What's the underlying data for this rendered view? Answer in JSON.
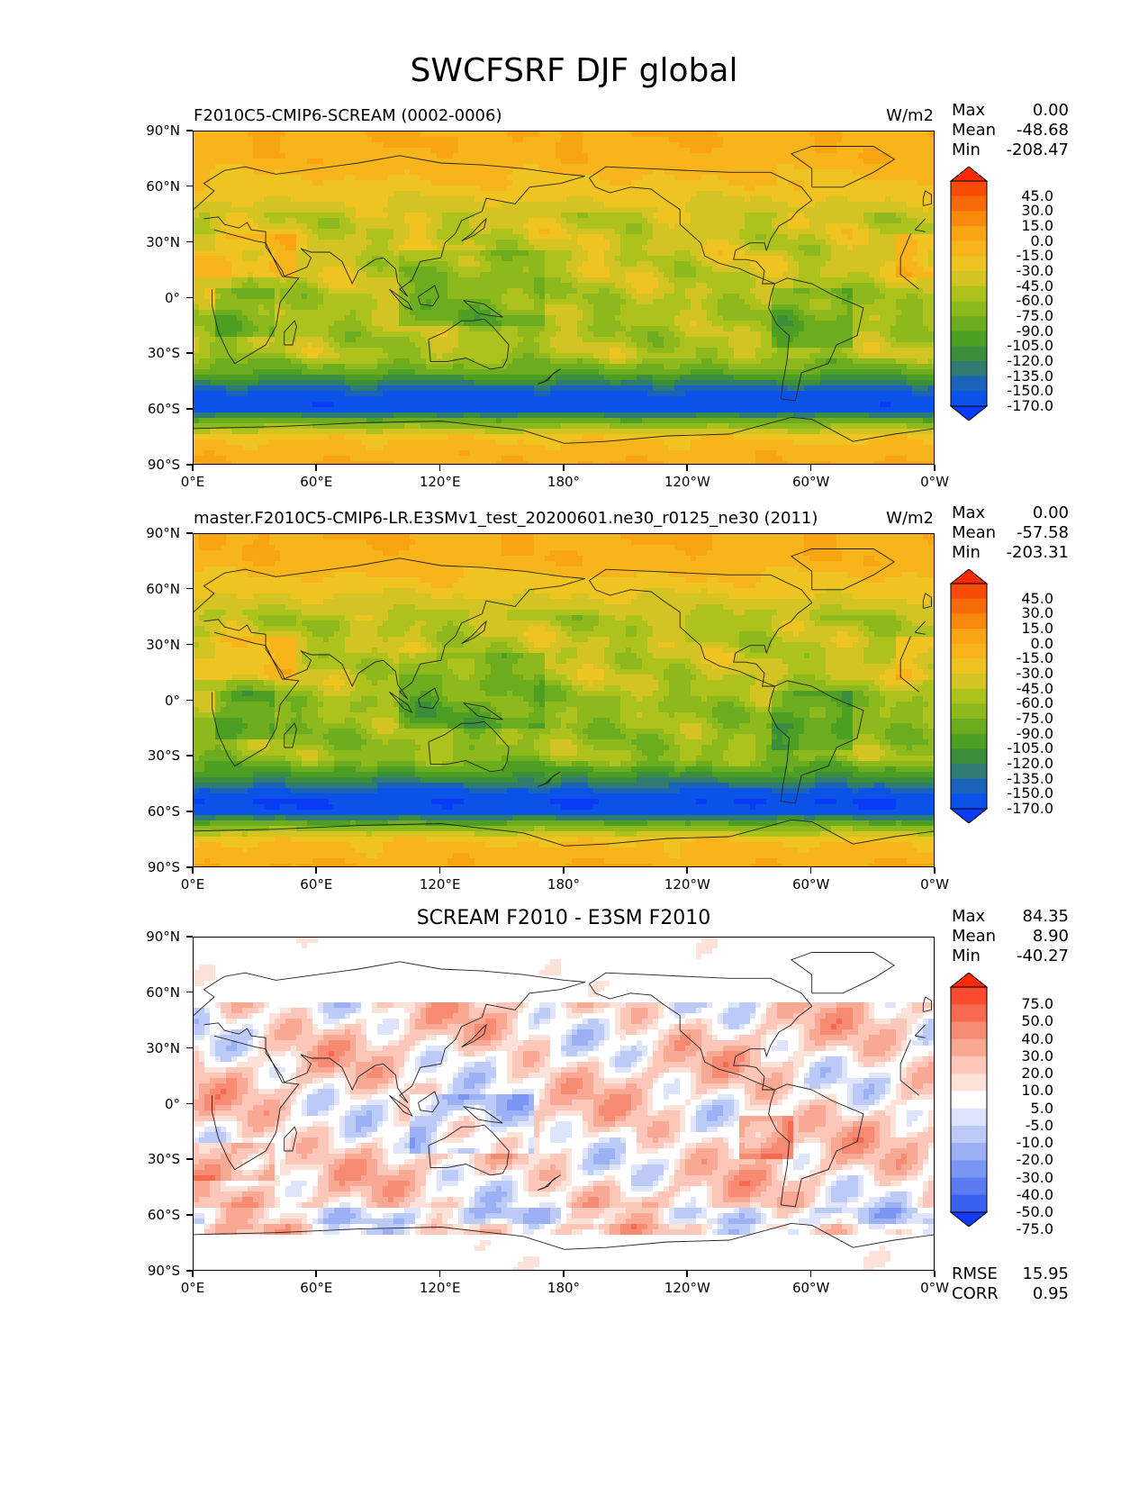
{
  "figure": {
    "title": "SWCFSRF DJF global"
  },
  "panels": [
    {
      "title_left": "F2010C5-CMIP6-SCREAM (0002-0006)",
      "title_center": "",
      "units": "W/m2",
      "stats": {
        "max_label": "Max",
        "max": "0.00",
        "mean_label": "Mean",
        "mean": "-48.68",
        "min_label": "Min",
        "min": "-208.47"
      },
      "colorbar": [
        "45.0",
        "30.0",
        "15.0",
        "0.0",
        "-15.0",
        "-30.0",
        "-45.0",
        "-60.0",
        "-75.0",
        "-90.0",
        "-105.0",
        "-120.0",
        "-135.0",
        "-150.0",
        "-170.0"
      ],
      "colors": [
        "#fa2a04",
        "#f84c05",
        "#f66a08",
        "#f78a0c",
        "#f9a511",
        "#f7b41b",
        "#f0c420",
        "#d4c423",
        "#aec21d",
        "#8eb91d",
        "#6bad1e",
        "#4c9f22",
        "#3a8e3c",
        "#307a74",
        "#1a63b8",
        "#0a52e8",
        "#0a3cf8"
      ]
    },
    {
      "title_left": "master.F2010C5-CMIP6-LR.E3SMv1_test_20200601.ne30_r0125_ne30 (2011)",
      "title_center": "",
      "units": "W/m2",
      "stats": {
        "max_label": "Max",
        "max": "0.00",
        "mean_label": "Mean",
        "mean": "-57.58",
        "min_label": "Min",
        "min": "-203.31"
      },
      "colorbar": [
        "45.0",
        "30.0",
        "15.0",
        "0.0",
        "-15.0",
        "-30.0",
        "-45.0",
        "-60.0",
        "-75.0",
        "-90.0",
        "-105.0",
        "-120.0",
        "-135.0",
        "-150.0",
        "-170.0"
      ],
      "colors": [
        "#fa2a04",
        "#f84c05",
        "#f66a08",
        "#f78a0c",
        "#f9a511",
        "#f7b41b",
        "#f0c420",
        "#d4c423",
        "#aec21d",
        "#8eb91d",
        "#6bad1e",
        "#4c9f22",
        "#3a8e3c",
        "#307a74",
        "#1a63b8",
        "#0a52e8",
        "#0a3cf8"
      ]
    },
    {
      "title_left": "",
      "title_center": "SCREAM F2010 - E3SM F2010",
      "units": "",
      "stats": {
        "max_label": "Max",
        "max": "84.35",
        "mean_label": "Mean",
        "mean": "8.90",
        "min_label": "Min",
        "min": "-40.27"
      },
      "colorbar": [
        "75.0",
        "50.0",
        "40.0",
        "30.0",
        "20.0",
        "10.0",
        "5.0",
        "-5.0",
        "-10.0",
        "-20.0",
        "-30.0",
        "-40.0",
        "-50.0",
        "-75.0"
      ],
      "colors": [
        "#ff2a0a",
        "#fb4a2e",
        "#f86a50",
        "#f78a72",
        "#f9a894",
        "#fcc6b8",
        "#fde2da",
        "#ffffff",
        "#dde4fb",
        "#bccaf8",
        "#9bb0f5",
        "#7a95f3",
        "#5a7bf1",
        "#3a60f0",
        "#1638f7"
      ],
      "extra": {
        "rmse_label": "RMSE",
        "rmse": "15.95",
        "corr_label": "CORR",
        "corr": "0.95"
      }
    }
  ],
  "axes": {
    "y_ticks": [
      "90°N",
      "60°N",
      "30°N",
      "0°",
      "30°S",
      "60°S",
      "90°S"
    ],
    "x_ticks": [
      "0°E",
      "60°E",
      "120°E",
      "180°",
      "120°W",
      "60°W",
      "0°W"
    ]
  },
  "chart_data": [
    {
      "type": "heatmap",
      "title": "F2010C5-CMIP6-SCREAM (0002-0006)",
      "units": "W/m2",
      "xlim": [
        0,
        360
      ],
      "ylim": [
        -90,
        90
      ],
      "x_ticks": [
        "0°E",
        "60°E",
        "120°E",
        "180°",
        "120°W",
        "60°W",
        "0°W"
      ],
      "y_ticks": [
        "90°N",
        "60°N",
        "30°N",
        "0°",
        "30°S",
        "60°S",
        "90°S"
      ],
      "levels": [
        -170,
        -150,
        -135,
        -120,
        -105,
        -90,
        -75,
        -60,
        -45,
        -30,
        -15,
        0,
        15,
        30,
        45
      ],
      "zonal_profile": {
        "lat": [
          90,
          75,
          60,
          45,
          30,
          15,
          0,
          -15,
          -30,
          -40,
          -50,
          -55,
          -60,
          -65,
          -75,
          -90
        ],
        "value": [
          0,
          -5,
          -20,
          -40,
          -40,
          -40,
          -50,
          -55,
          -50,
          -90,
          -150,
          -165,
          -160,
          -90,
          -15,
          0
        ]
      },
      "stats": {
        "max": 0.0,
        "mean": -48.68,
        "min": -208.47
      }
    },
    {
      "type": "heatmap",
      "title": "master.F2010C5-CMIP6-LR.E3SMv1_test_20200601.ne30_r0125_ne30 (2011)",
      "units": "W/m2",
      "xlim": [
        0,
        360
      ],
      "ylim": [
        -90,
        90
      ],
      "levels": [
        -170,
        -150,
        -135,
        -120,
        -105,
        -90,
        -75,
        -60,
        -45,
        -30,
        -15,
        0,
        15,
        30,
        45
      ],
      "zonal_profile": {
        "lat": [
          90,
          75,
          60,
          45,
          30,
          15,
          0,
          -15,
          -30,
          -40,
          -50,
          -55,
          -60,
          -65,
          -75,
          -90
        ],
        "value": [
          0,
          -5,
          -25,
          -50,
          -45,
          -45,
          -60,
          -65,
          -60,
          -105,
          -160,
          -170,
          -160,
          -95,
          -15,
          0
        ]
      },
      "stats": {
        "max": 0.0,
        "mean": -57.58,
        "min": -203.31
      }
    },
    {
      "type": "heatmap",
      "title": "SCREAM F2010 - E3SM F2010",
      "xlim": [
        0,
        360
      ],
      "ylim": [
        -90,
        90
      ],
      "levels": [
        -75,
        -50,
        -40,
        -30,
        -20,
        -10,
        -5,
        5,
        10,
        20,
        30,
        40,
        50,
        75
      ],
      "stats": {
        "max": 84.35,
        "mean": 8.9,
        "min": -40.27,
        "rmse": 15.95,
        "corr": 0.95
      }
    }
  ]
}
